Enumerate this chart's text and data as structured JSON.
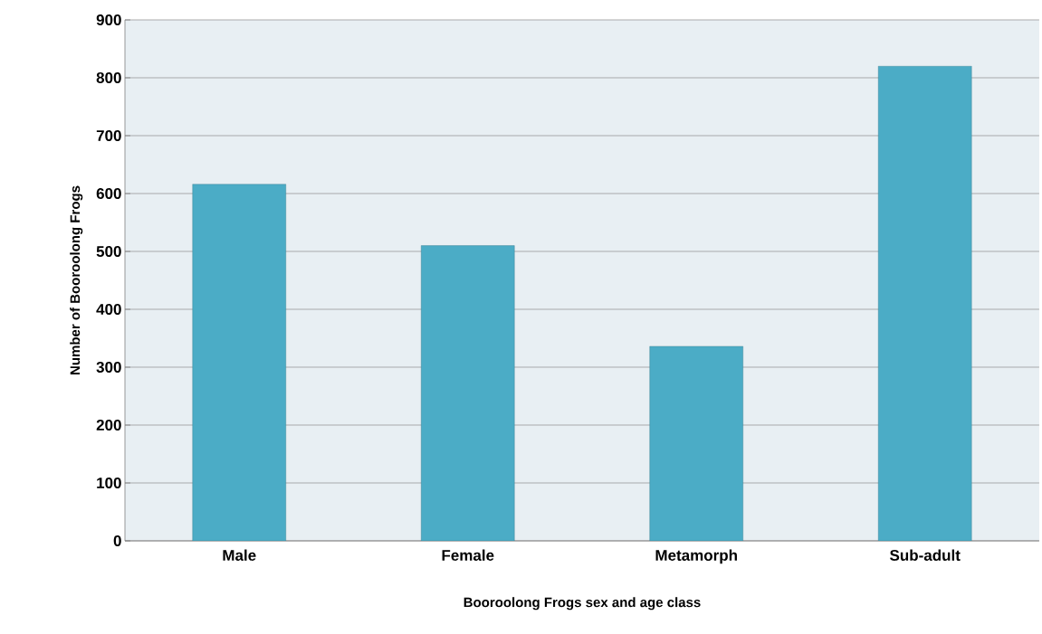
{
  "chart_data": {
    "type": "bar",
    "xlabel": "Booroolong Frogs sex and age class",
    "ylabel": "Number of Booroolong Frogs",
    "categories": [
      "Male",
      "Female",
      "Metamorph",
      "Sub-adult"
    ],
    "values": [
      616,
      510,
      336,
      820
    ],
    "color": "#4bacc6",
    "ylim": [
      0,
      900
    ],
    "yticks": [
      0,
      100,
      200,
      300,
      400,
      500,
      600,
      700,
      800,
      900
    ],
    "grid": "y"
  }
}
